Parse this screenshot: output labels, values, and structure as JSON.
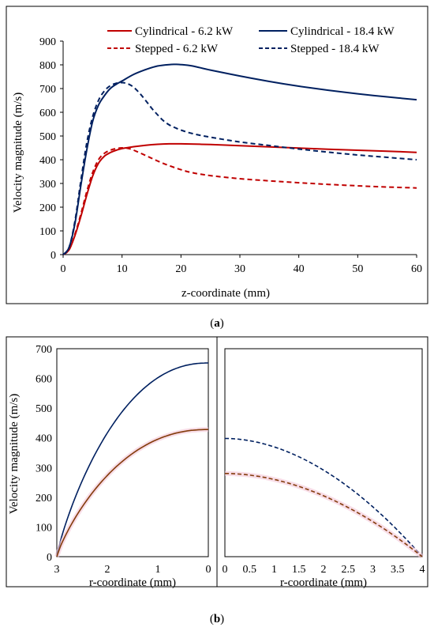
{
  "colors": {
    "red": "#c00000",
    "navy": "#002060",
    "brown": "#843c0c",
    "frame": "#000000",
    "pink_shadow": "#f4c7d7"
  },
  "chart_data": [
    {
      "id": "a",
      "type": "line",
      "caption": "a",
      "xlabel": "z-coordinate (mm)",
      "ylabel": "Velocity magnitude (m/s)",
      "xlim": [
        0,
        60
      ],
      "ylim": [
        0,
        900
      ],
      "xticks": [
        0,
        10,
        20,
        30,
        40,
        50,
        60
      ],
      "yticks": [
        0,
        100,
        200,
        300,
        400,
        500,
        600,
        700,
        800,
        900
      ],
      "grid": false,
      "legend_position": "top",
      "series": [
        {
          "name": "Cylindrical - 6.2 kW",
          "color": "#c00000",
          "dash": "solid",
          "points": [
            [
              0,
              0
            ],
            [
              1,
              20
            ],
            [
              2,
              80
            ],
            [
              3,
              160
            ],
            [
              4,
              250
            ],
            [
              5,
              330
            ],
            [
              6,
              385
            ],
            [
              7,
              415
            ],
            [
              8,
              430
            ],
            [
              9,
              440
            ],
            [
              10,
              447
            ],
            [
              12,
              455
            ],
            [
              14,
              461
            ],
            [
              16,
              465
            ],
            [
              18,
              467
            ],
            [
              20,
              467
            ],
            [
              25,
              464
            ],
            [
              30,
              459
            ],
            [
              35,
              454
            ],
            [
              40,
              449
            ],
            [
              45,
              444
            ],
            [
              50,
              440
            ],
            [
              55,
              436
            ],
            [
              60,
              431
            ]
          ]
        },
        {
          "name": "Stepped - 6.2 kW",
          "color": "#c00000",
          "dash": "dashed",
          "points": [
            [
              0,
              0
            ],
            [
              1,
              20
            ],
            [
              2,
              85
            ],
            [
              3,
              170
            ],
            [
              4,
              265
            ],
            [
              5,
              345
            ],
            [
              6,
              400
            ],
            [
              7,
              427
            ],
            [
              8,
              440
            ],
            [
              9,
              447
            ],
            [
              10,
              450
            ],
            [
              11,
              448
            ],
            [
              12,
              440
            ],
            [
              14,
              418
            ],
            [
              16,
              395
            ],
            [
              18,
              375
            ],
            [
              20,
              358
            ],
            [
              22,
              345
            ],
            [
              25,
              333
            ],
            [
              30,
              320
            ],
            [
              35,
              311
            ],
            [
              40,
              303
            ],
            [
              45,
              296
            ],
            [
              50,
              290
            ],
            [
              55,
              285
            ],
            [
              60,
              281
            ]
          ]
        },
        {
          "name": "Cylindrical - 18.4 kW",
          "color": "#002060",
          "dash": "solid",
          "points": [
            [
              0,
              0
            ],
            [
              1,
              30
            ],
            [
              2,
              130
            ],
            [
              3,
              290
            ],
            [
              4,
              440
            ],
            [
              5,
              560
            ],
            [
              6,
              630
            ],
            [
              7,
              670
            ],
            [
              8,
              700
            ],
            [
              9,
              718
            ],
            [
              10,
              732
            ],
            [
              12,
              760
            ],
            [
              14,
              780
            ],
            [
              16,
              795
            ],
            [
              18,
              801
            ],
            [
              19,
              802
            ],
            [
              20,
              801
            ],
            [
              22,
              795
            ],
            [
              25,
              778
            ],
            [
              30,
              753
            ],
            [
              35,
              730
            ],
            [
              40,
              710
            ],
            [
              45,
              693
            ],
            [
              50,
              678
            ],
            [
              55,
              665
            ],
            [
              60,
              653
            ]
          ]
        },
        {
          "name": "Stepped - 18.4 kW",
          "color": "#002060",
          "dash": "dashed",
          "points": [
            [
              0,
              0
            ],
            [
              1,
              30
            ],
            [
              2,
              140
            ],
            [
              3,
              310
            ],
            [
              4,
              470
            ],
            [
              5,
              580
            ],
            [
              6,
              650
            ],
            [
              7,
              690
            ],
            [
              8,
              712
            ],
            [
              9,
              722
            ],
            [
              10,
              725
            ],
            [
              11,
              720
            ],
            [
              12,
              705
            ],
            [
              13,
              680
            ],
            [
              14,
              650
            ],
            [
              15,
              618
            ],
            [
              16,
              590
            ],
            [
              17,
              565
            ],
            [
              18,
              547
            ],
            [
              19,
              535
            ],
            [
              20,
              525
            ],
            [
              22,
              510
            ],
            [
              25,
              495
            ],
            [
              30,
              475
            ],
            [
              35,
              460
            ],
            [
              40,
              445
            ],
            [
              45,
              432
            ],
            [
              50,
              420
            ],
            [
              55,
              410
            ],
            [
              60,
              400
            ]
          ]
        }
      ]
    },
    {
      "id": "b-left",
      "type": "line",
      "caption": "b",
      "xlabel": "r-coordinate (mm)",
      "ylabel": "Velocity magnitude (m/s)",
      "xlim": [
        3,
        0
      ],
      "ylim": [
        0,
        700
      ],
      "xticks": [
        3,
        2,
        1,
        0
      ],
      "yticks": [
        0,
        100,
        200,
        300,
        400,
        500,
        600,
        700
      ],
      "grid": false,
      "series": [
        {
          "color": "#002060",
          "dash": "solid",
          "center_value": 652,
          "edge_value": 0,
          "radius": 3
        },
        {
          "color": "#843c0c",
          "dash": "solid",
          "center_value": 428,
          "edge_value": 0,
          "radius": 3
        }
      ]
    },
    {
      "id": "b-right",
      "type": "line",
      "xlabel": "r-coordinate (mm)",
      "ylabel": "",
      "xlim": [
        0,
        4
      ],
      "ylim": [
        0,
        700
      ],
      "xticks": [
        "0",
        "0.5",
        "1",
        "1.5",
        "2",
        "2.5",
        "3",
        "3.5",
        "4"
      ],
      "grid": false,
      "series": [
        {
          "color": "#002060",
          "dash": "dashed",
          "center_value": 398,
          "edge_value": 0,
          "radius": 4
        },
        {
          "color": "#843c0c",
          "dash": "dashed",
          "center_value": 280,
          "edge_value": 0,
          "radius": 4
        }
      ]
    }
  ]
}
